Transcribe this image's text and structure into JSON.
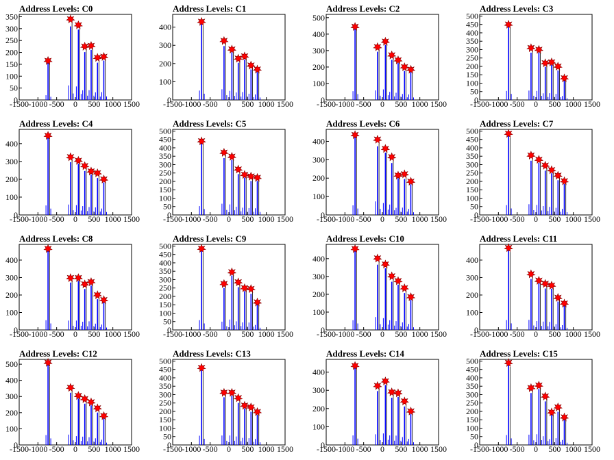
{
  "colors": {
    "histogram": "#0000ff",
    "histogram_overlay": "#000000",
    "marker_fill": "#ff0000",
    "marker_stroke": "#7f0000"
  },
  "chart_data": [
    {
      "type": "bar",
      "title": "Address Levels: C0",
      "xlim": [
        -1500,
        1500
      ],
      "ylim": [
        0,
        360
      ],
      "x_ticks": [
        "-1500",
        "-1000",
        "-500",
        "0",
        "500",
        "1000",
        "1500"
      ],
      "y_ticks": [
        "0",
        "50",
        "100",
        "150",
        "200",
        "250",
        "300",
        "350"
      ],
      "peaks": [
        {
          "x": -730,
          "y": 165
        },
        {
          "x": -130,
          "y": 340
        },
        {
          "x": 80,
          "y": 315
        },
        {
          "x": 250,
          "y": 225
        },
        {
          "x": 420,
          "y": 228
        },
        {
          "x": 590,
          "y": 178
        },
        {
          "x": 760,
          "y": 182
        }
      ]
    },
    {
      "type": "bar",
      "title": "Address Levels: C1",
      "xlim": [
        -1500,
        1500
      ],
      "ylim": [
        0,
        470
      ],
      "x_ticks": [
        "-1500",
        "-1000",
        "-500",
        "0",
        "500",
        "1000",
        "1500"
      ],
      "y_ticks": [
        "0",
        "100",
        "200",
        "300",
        "400"
      ],
      "peaks": [
        {
          "x": -730,
          "y": 430
        },
        {
          "x": -130,
          "y": 325
        },
        {
          "x": 80,
          "y": 278
        },
        {
          "x": 250,
          "y": 228
        },
        {
          "x": 420,
          "y": 240
        },
        {
          "x": 590,
          "y": 190
        },
        {
          "x": 760,
          "y": 168
        }
      ]
    },
    {
      "type": "bar",
      "title": "Address Levels: C2",
      "xlim": [
        -1500,
        1500
      ],
      "ylim": [
        0,
        520
      ],
      "x_ticks": [
        "-1500",
        "-1000",
        "-500",
        "0",
        "500",
        "1000",
        "1500"
      ],
      "y_ticks": [
        "0",
        "100",
        "200",
        "300",
        "400",
        "500"
      ],
      "peaks": [
        {
          "x": -730,
          "y": 445
        },
        {
          "x": -130,
          "y": 322
        },
        {
          "x": 80,
          "y": 355
        },
        {
          "x": 250,
          "y": 272
        },
        {
          "x": 420,
          "y": 242
        },
        {
          "x": 590,
          "y": 200
        },
        {
          "x": 760,
          "y": 185
        }
      ]
    },
    {
      "type": "bar",
      "title": "Address Levels: C3",
      "xlim": [
        -1500,
        1500
      ],
      "ylim": [
        0,
        510
      ],
      "x_ticks": [
        "-1500",
        "-1000",
        "-500",
        "0",
        "500",
        "1000",
        "1500"
      ],
      "y_ticks": [
        "0",
        "50",
        "100",
        "150",
        "200",
        "250",
        "300",
        "350",
        "400",
        "450",
        "500"
      ],
      "peaks": [
        {
          "x": -730,
          "y": 450
        },
        {
          "x": -130,
          "y": 310
        },
        {
          "x": 80,
          "y": 300
        },
        {
          "x": 250,
          "y": 220
        },
        {
          "x": 420,
          "y": 225
        },
        {
          "x": 590,
          "y": 200
        },
        {
          "x": 760,
          "y": 130
        }
      ]
    },
    {
      "type": "bar",
      "title": "Address Levels: C4",
      "xlim": [
        -1500,
        1500
      ],
      "ylim": [
        0,
        480
      ],
      "x_ticks": [
        "-1500",
        "-1000",
        "-500",
        "0",
        "500",
        "1000",
        "1500"
      ],
      "y_ticks": [
        "0",
        "100",
        "200",
        "300",
        "400"
      ],
      "peaks": [
        {
          "x": -730,
          "y": 445
        },
        {
          "x": -130,
          "y": 325
        },
        {
          "x": 80,
          "y": 305
        },
        {
          "x": 250,
          "y": 275
        },
        {
          "x": 420,
          "y": 245
        },
        {
          "x": 590,
          "y": 235
        },
        {
          "x": 760,
          "y": 200
        }
      ]
    },
    {
      "type": "bar",
      "title": "Address Levels: C5",
      "xlim": [
        -1500,
        1500
      ],
      "ylim": [
        0,
        510
      ],
      "x_ticks": [
        "-1500",
        "-1000",
        "-500",
        "0",
        "500",
        "1000",
        "1500"
      ],
      "y_ticks": [
        "0",
        "50",
        "100",
        "150",
        "200",
        "250",
        "300",
        "350",
        "400",
        "450",
        "500"
      ],
      "peaks": [
        {
          "x": -730,
          "y": 440
        },
        {
          "x": -130,
          "y": 372
        },
        {
          "x": 80,
          "y": 348
        },
        {
          "x": 250,
          "y": 272
        },
        {
          "x": 420,
          "y": 240
        },
        {
          "x": 590,
          "y": 230
        },
        {
          "x": 760,
          "y": 222
        }
      ]
    },
    {
      "type": "bar",
      "title": "Address Levels: C6",
      "xlim": [
        -1500,
        1500
      ],
      "ylim": [
        0,
        465
      ],
      "x_ticks": [
        "-1500",
        "-1000",
        "-500",
        "0",
        "500",
        "1000",
        "1500"
      ],
      "y_ticks": [
        "0",
        "100",
        "200",
        "300",
        "400"
      ],
      "peaks": [
        {
          "x": -730,
          "y": 435
        },
        {
          "x": -130,
          "y": 410
        },
        {
          "x": 80,
          "y": 360
        },
        {
          "x": 250,
          "y": 315
        },
        {
          "x": 420,
          "y": 215
        },
        {
          "x": 590,
          "y": 222
        },
        {
          "x": 760,
          "y": 182
        }
      ]
    },
    {
      "type": "bar",
      "title": "Address Levels: C7",
      "xlim": [
        -1500,
        1500
      ],
      "ylim": [
        0,
        510
      ],
      "x_ticks": [
        "-1500",
        "-1000",
        "-500",
        "0",
        "500",
        "1000",
        "1500"
      ],
      "y_ticks": [
        "0",
        "50",
        "100",
        "150",
        "200",
        "250",
        "300",
        "350",
        "400",
        "450",
        "500"
      ],
      "peaks": [
        {
          "x": -730,
          "y": 485
        },
        {
          "x": -130,
          "y": 355
        },
        {
          "x": 80,
          "y": 330
        },
        {
          "x": 250,
          "y": 295
        },
        {
          "x": 420,
          "y": 268
        },
        {
          "x": 590,
          "y": 235
        },
        {
          "x": 760,
          "y": 202
        }
      ]
    },
    {
      "type": "bar",
      "title": "Address Levels: C8",
      "xlim": [
        -1500,
        1500
      ],
      "ylim": [
        0,
        490
      ],
      "x_ticks": [
        "-1500",
        "-1000",
        "-500",
        "0",
        "500",
        "1000",
        "1500"
      ],
      "y_ticks": [
        "0",
        "100",
        "200",
        "300",
        "400"
      ],
      "peaks": [
        {
          "x": -730,
          "y": 465
        },
        {
          "x": -130,
          "y": 298
        },
        {
          "x": 80,
          "y": 298
        },
        {
          "x": 250,
          "y": 262
        },
        {
          "x": 420,
          "y": 275
        },
        {
          "x": 590,
          "y": 200
        },
        {
          "x": 760,
          "y": 172
        }
      ]
    },
    {
      "type": "bar",
      "title": "Address Levels: C9",
      "xlim": [
        -1500,
        1500
      ],
      "ylim": [
        0,
        510
      ],
      "x_ticks": [
        "-1500",
        "-1000",
        "-500",
        "0",
        "500",
        "1000",
        "1500"
      ],
      "y_ticks": [
        "0",
        "50",
        "100",
        "150",
        "200",
        "250",
        "300",
        "350",
        "400",
        "450",
        "500"
      ],
      "peaks": [
        {
          "x": -730,
          "y": 485
        },
        {
          "x": -130,
          "y": 275
        },
        {
          "x": 80,
          "y": 345
        },
        {
          "x": 250,
          "y": 285
        },
        {
          "x": 420,
          "y": 250
        },
        {
          "x": 590,
          "y": 245
        },
        {
          "x": 760,
          "y": 165
        }
      ]
    },
    {
      "type": "bar",
      "title": "Address Levels: C10",
      "xlim": [
        -1500,
        1500
      ],
      "ylim": [
        0,
        480
      ],
      "x_ticks": [
        "-1500",
        "-1000",
        "-500",
        "0",
        "500",
        "1000",
        "1500"
      ],
      "y_ticks": [
        "0",
        "100",
        "200",
        "300",
        "400"
      ],
      "peaks": [
        {
          "x": -730,
          "y": 455
        },
        {
          "x": -130,
          "y": 402
        },
        {
          "x": 80,
          "y": 368
        },
        {
          "x": 250,
          "y": 302
        },
        {
          "x": 420,
          "y": 275
        },
        {
          "x": 590,
          "y": 235
        },
        {
          "x": 760,
          "y": 185
        }
      ]
    },
    {
      "type": "bar",
      "title": "Address Levels: C11",
      "xlim": [
        -1500,
        1500
      ],
      "ylim": [
        0,
        490
      ],
      "x_ticks": [
        "-1500",
        "-1000",
        "-500",
        "0",
        "500",
        "1000",
        "1500"
      ],
      "y_ticks": [
        "0",
        "100",
        "200",
        "300",
        "400"
      ],
      "peaks": [
        {
          "x": -730,
          "y": 470
        },
        {
          "x": -130,
          "y": 320
        },
        {
          "x": 80,
          "y": 283
        },
        {
          "x": 250,
          "y": 265
        },
        {
          "x": 420,
          "y": 255
        },
        {
          "x": 590,
          "y": 185
        },
        {
          "x": 760,
          "y": 152
        }
      ]
    },
    {
      "type": "bar",
      "title": "Address Levels: C12",
      "xlim": [
        -1500,
        1500
      ],
      "ylim": [
        0,
        530
      ],
      "x_ticks": [
        "-1500",
        "-1000",
        "-500",
        "0",
        "500",
        "1000",
        "1500"
      ],
      "y_ticks": [
        "0",
        "100",
        "200",
        "300",
        "400",
        "500"
      ],
      "peaks": [
        {
          "x": -730,
          "y": 510
        },
        {
          "x": -130,
          "y": 355
        },
        {
          "x": 80,
          "y": 305
        },
        {
          "x": 250,
          "y": 285
        },
        {
          "x": 420,
          "y": 265
        },
        {
          "x": 590,
          "y": 228
        },
        {
          "x": 760,
          "y": 180
        }
      ]
    },
    {
      "type": "bar",
      "title": "Address Levels: C13",
      "xlim": [
        -1500,
        1500
      ],
      "ylim": [
        0,
        510
      ],
      "x_ticks": [
        "-1500",
        "-1000",
        "-500",
        "0",
        "500",
        "1000",
        "1500"
      ],
      "y_ticks": [
        "0",
        "50",
        "100",
        "150",
        "200",
        "250",
        "300",
        "350",
        "400",
        "450",
        "500"
      ],
      "peaks": [
        {
          "x": -730,
          "y": 460
        },
        {
          "x": -130,
          "y": 312
        },
        {
          "x": 80,
          "y": 312
        },
        {
          "x": 250,
          "y": 280
        },
        {
          "x": 420,
          "y": 235
        },
        {
          "x": 590,
          "y": 225
        },
        {
          "x": 760,
          "y": 197
        }
      ]
    },
    {
      "type": "bar",
      "title": "Address Levels: C14",
      "xlim": [
        -1500,
        1500
      ],
      "ylim": [
        0,
        470
      ],
      "x_ticks": [
        "-1500",
        "-1000",
        "-500",
        "0",
        "500",
        "1000",
        "1500"
      ],
      "y_ticks": [
        "0",
        "100",
        "200",
        "300",
        "400"
      ],
      "peaks": [
        {
          "x": -730,
          "y": 435
        },
        {
          "x": -130,
          "y": 325
        },
        {
          "x": 80,
          "y": 350
        },
        {
          "x": 250,
          "y": 290
        },
        {
          "x": 420,
          "y": 285
        },
        {
          "x": 590,
          "y": 240
        },
        {
          "x": 760,
          "y": 185
        }
      ]
    },
    {
      "type": "bar",
      "title": "Address Levels: C15",
      "xlim": [
        -1500,
        1500
      ],
      "ylim": [
        0,
        510
      ],
      "x_ticks": [
        "-1500",
        "-1000",
        "-500",
        "0",
        "500",
        "1000",
        "1500"
      ],
      "y_ticks": [
        "0",
        "50",
        "100",
        "150",
        "200",
        "250",
        "300",
        "350",
        "400",
        "450",
        "500"
      ],
      "peaks": [
        {
          "x": -730,
          "y": 490
        },
        {
          "x": -130,
          "y": 340
        },
        {
          "x": 80,
          "y": 355
        },
        {
          "x": 250,
          "y": 290
        },
        {
          "x": 420,
          "y": 195
        },
        {
          "x": 590,
          "y": 225
        },
        {
          "x": 760,
          "y": 165
        }
      ]
    }
  ]
}
